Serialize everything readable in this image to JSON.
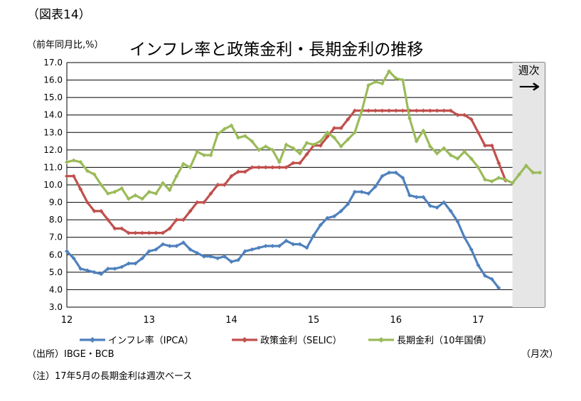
{
  "figure_label": "（図表14）",
  "unit_label": "（前年同月比,%）",
  "title": "インフレ率と政策金利・長期金利の推移",
  "source": "（出所）IBGE・BCB",
  "x_unit": "（月次）",
  "note": "（注）17年5月の長期金利は週次ベース",
  "weekly_label": "週次",
  "weekly_arrow": "→",
  "colors": {
    "inflation": "#4F81BD",
    "selic": "#C0504D",
    "long_rate": "#9BBB59",
    "weekly_shade": "#E6E6E6"
  },
  "chart_data": {
    "type": "line",
    "title": "インフレ率と政策金利・長期金利の推移",
    "ylabel": "（前年同月比,%）",
    "xlabel": "（月次）",
    "ylim": [
      3.0,
      17.0
    ],
    "yticks": [
      "3.0",
      "4.0",
      "5.0",
      "6.0",
      "7.0",
      "8.0",
      "9.0",
      "10.0",
      "11.0",
      "12.0",
      "13.0",
      "14.0",
      "15.0",
      "16.0",
      "17.0"
    ],
    "xticks": [
      {
        "label": "12",
        "month": 0
      },
      {
        "label": "13",
        "month": 12
      },
      {
        "label": "14",
        "month": 24
      },
      {
        "label": "15",
        "month": 36
      },
      {
        "label": "16",
        "month": 48
      },
      {
        "label": "17",
        "month": 60
      }
    ],
    "weekly_region_start_month": 65,
    "grid": true,
    "legend_position": "bottom",
    "series": [
      {
        "name": "インフレ率（IPCA）",
        "key": "inflation",
        "values": [
          6.2,
          5.8,
          5.2,
          5.1,
          5.0,
          4.9,
          5.2,
          5.2,
          5.3,
          5.5,
          5.5,
          5.8,
          6.2,
          6.3,
          6.6,
          6.5,
          6.5,
          6.7,
          6.3,
          6.1,
          5.9,
          5.9,
          5.8,
          5.9,
          5.6,
          5.7,
          6.2,
          6.3,
          6.4,
          6.5,
          6.5,
          6.5,
          6.8,
          6.6,
          6.6,
          6.4,
          7.1,
          7.7,
          8.1,
          8.2,
          8.5,
          8.9,
          9.6,
          9.6,
          9.5,
          9.9,
          10.5,
          10.7,
          10.7,
          10.4,
          9.4,
          9.3,
          9.3,
          8.8,
          8.7,
          9.0,
          8.5,
          7.9,
          7.0,
          6.3,
          5.4,
          4.8,
          4.6,
          4.1
        ]
      },
      {
        "name": "政策金利（SELIC）",
        "key": "selic",
        "values": [
          10.5,
          10.5,
          9.75,
          9.0,
          8.5,
          8.5,
          8.0,
          7.5,
          7.5,
          7.25,
          7.25,
          7.25,
          7.25,
          7.25,
          7.25,
          7.5,
          8.0,
          8.0,
          8.5,
          9.0,
          9.0,
          9.5,
          10.0,
          10.0,
          10.5,
          10.75,
          10.75,
          11.0,
          11.0,
          11.0,
          11.0,
          11.0,
          11.0,
          11.25,
          11.25,
          11.75,
          12.25,
          12.25,
          12.75,
          13.25,
          13.25,
          13.75,
          14.25,
          14.25,
          14.25,
          14.25,
          14.25,
          14.25,
          14.25,
          14.25,
          14.25,
          14.25,
          14.25,
          14.25,
          14.25,
          14.25,
          14.25,
          14.0,
          14.0,
          13.75,
          13.0,
          12.25,
          12.25,
          11.25,
          10.25
        ]
      },
      {
        "name": "長期金利（10年国債）",
        "key": "long_rate",
        "x": [
          0,
          1,
          2,
          3,
          4,
          5,
          6,
          7,
          8,
          9,
          10,
          11,
          12,
          13,
          14,
          15,
          16,
          17,
          18,
          19,
          20,
          21,
          22,
          23,
          24,
          25,
          26,
          27,
          28,
          29,
          30,
          31,
          32,
          33,
          34,
          35,
          36,
          37,
          38,
          39,
          40,
          41,
          42,
          43,
          44,
          45,
          46,
          47,
          48,
          49,
          50,
          51,
          52,
          53,
          54,
          55,
          56,
          57,
          58,
          59,
          60,
          61,
          62,
          63,
          64,
          65,
          66,
          67,
          68,
          69
        ],
        "values": [
          11.3,
          11.4,
          11.3,
          10.8,
          10.6,
          10.0,
          9.5,
          9.6,
          9.8,
          9.2,
          9.4,
          9.2,
          9.6,
          9.5,
          10.1,
          9.7,
          10.5,
          11.2,
          11.0,
          11.9,
          11.7,
          11.7,
          12.9,
          13.2,
          13.4,
          12.7,
          12.8,
          12.5,
          12.0,
          12.2,
          12.0,
          11.3,
          12.3,
          12.1,
          11.8,
          12.4,
          12.3,
          12.5,
          13.0,
          12.7,
          12.2,
          12.6,
          13.0,
          14.2,
          15.7,
          15.9,
          15.8,
          16.5,
          16.1,
          16.0,
          13.8,
          12.5,
          13.1,
          12.2,
          11.8,
          12.1,
          11.7,
          11.5,
          11.9,
          11.5,
          11.0,
          10.3,
          10.2,
          10.4,
          10.3,
          10.1,
          10.6,
          11.1,
          10.7,
          10.7
        ]
      }
    ]
  }
}
